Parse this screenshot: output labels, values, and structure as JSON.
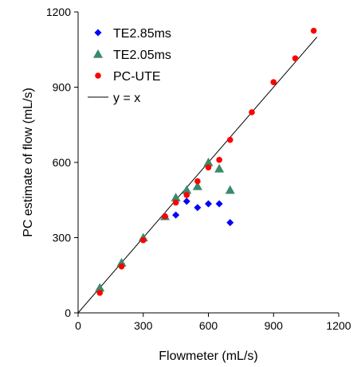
{
  "chart_data": {
    "type": "scatter",
    "xlabel": "Flowmeter (mL/s)",
    "ylabel": "PC estimate of flow (mL/s)",
    "xlim": [
      0,
      1200
    ],
    "ylim": [
      0,
      1200
    ],
    "xticks": [
      0,
      300,
      600,
      900,
      1200
    ],
    "yticks": [
      0,
      300,
      600,
      900,
      1200
    ],
    "xtick_labels": [
      "0",
      "300",
      "600",
      "900",
      "1200"
    ],
    "ytick_labels": [
      "0",
      "300",
      "600",
      "900",
      "1200"
    ],
    "grid": false,
    "legend_position": "top-left",
    "series": [
      {
        "name": "TE2.85ms",
        "marker": "diamond",
        "color": "#0000ff",
        "points": [
          [
            100,
            95
          ],
          [
            200,
            195
          ],
          [
            300,
            295
          ],
          [
            400,
            385
          ],
          [
            450,
            390
          ],
          [
            500,
            445
          ],
          [
            550,
            420
          ],
          [
            600,
            435
          ],
          [
            650,
            435
          ],
          [
            700,
            360
          ]
        ]
      },
      {
        "name": "TE2.05ms",
        "marker": "triangle",
        "color": "#3a8a6a",
        "points": [
          [
            100,
            100
          ],
          [
            200,
            200
          ],
          [
            300,
            300
          ],
          [
            400,
            385
          ],
          [
            450,
            460
          ],
          [
            500,
            490
          ],
          [
            550,
            505
          ],
          [
            600,
            600
          ],
          [
            650,
            575
          ],
          [
            700,
            490
          ]
        ]
      },
      {
        "name": "PC-UTE",
        "marker": "circle",
        "color": "#ff0000",
        "points": [
          [
            100,
            80
          ],
          [
            200,
            185
          ],
          [
            300,
            290
          ],
          [
            400,
            385
          ],
          [
            450,
            440
          ],
          [
            500,
            470
          ],
          [
            550,
            525
          ],
          [
            600,
            580
          ],
          [
            650,
            610
          ],
          [
            700,
            690
          ],
          [
            800,
            800
          ],
          [
            900,
            920
          ],
          [
            1000,
            1015
          ],
          [
            1085,
            1125
          ]
        ]
      },
      {
        "name": "y = x",
        "marker": "line",
        "color": "#000000",
        "line": [
          [
            0,
            0
          ],
          [
            1100,
            1100
          ]
        ]
      }
    ]
  }
}
